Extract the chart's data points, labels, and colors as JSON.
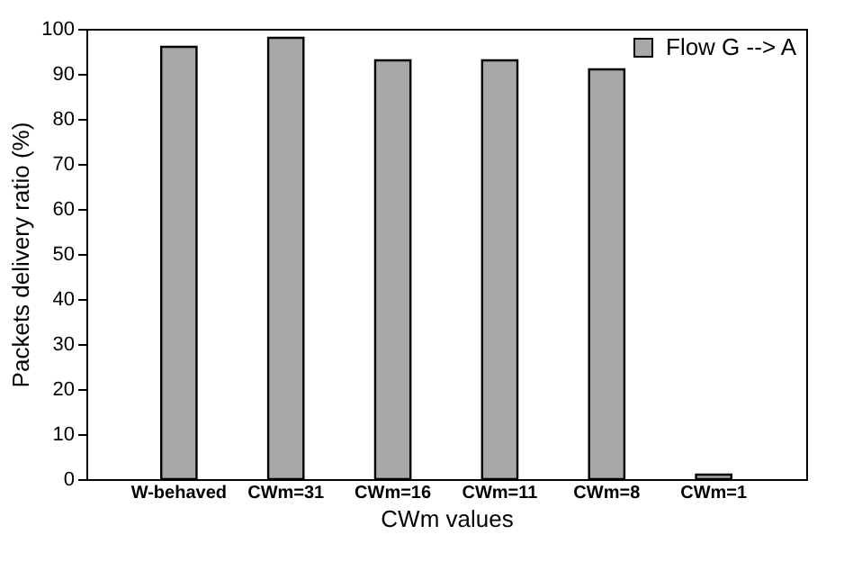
{
  "chart_data": {
    "type": "bar",
    "xlabel": "CWm values",
    "ylabel": "Packets delivery ratio (%)",
    "categories": [
      "W-behaved",
      "CWm=31",
      "CWm=16",
      "CWm=11",
      "CWm=8",
      "CWm=1"
    ],
    "series": [
      {
        "name": "Flow G --> A",
        "color": "#a8a8a8",
        "values": [
          96,
          98,
          93,
          93,
          91,
          1
        ]
      }
    ],
    "ylim": [
      0,
      100
    ],
    "yticks": [
      0,
      10,
      20,
      30,
      40,
      50,
      60,
      70,
      80,
      90,
      100
    ],
    "grid": false,
    "legend": "top right"
  }
}
